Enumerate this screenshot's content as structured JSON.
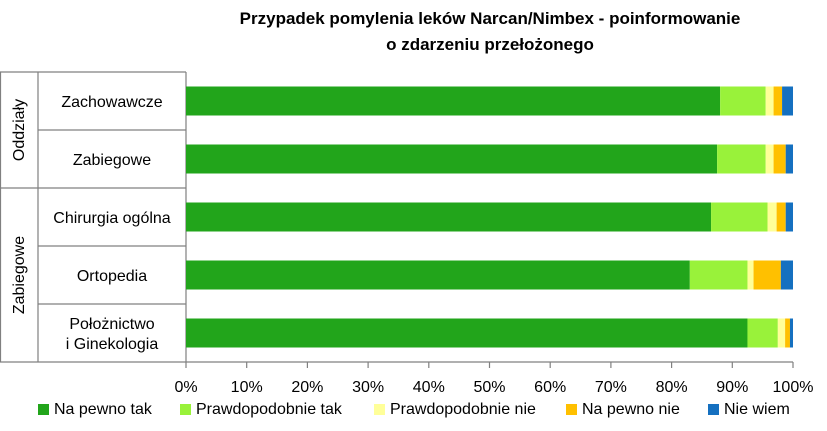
{
  "chart_data": {
    "type": "bar",
    "orientation": "horizontal",
    "stacked": "percent",
    "title_lines": [
      "Przypadek pomylenia leków  Narcan/Nimbex - poinformowanie",
      "o zdarzeniu przełożonego"
    ],
    "groups": [
      {
        "label": "Oddziały",
        "categories": [
          "Zachowawcze",
          "Zabiegowe"
        ]
      },
      {
        "label": "Zabiegowe",
        "categories": [
          "Chirurgia ogólna",
          "Ortopedia",
          "Położnictwo i Ginekologia"
        ]
      }
    ],
    "categories": [
      [
        "Zachowawcze"
      ],
      [
        "Zabiegowe"
      ],
      [
        "Chirurgia ogólna"
      ],
      [
        "Ortopedia"
      ],
      [
        "Położnictwo",
        "i Ginekologia"
      ]
    ],
    "series": [
      {
        "name": "Na pewno tak",
        "color": "#22A51B",
        "values": [
          88.0,
          87.5,
          86.5,
          83.0,
          92.5
        ]
      },
      {
        "name": "Prawdopodobnie tak",
        "color": "#99F23A",
        "values": [
          7.5,
          8.0,
          9.3,
          9.5,
          5.0
        ]
      },
      {
        "name": "Prawdopodobnie nie",
        "color": "#FFFF99",
        "values": [
          1.3,
          1.3,
          1.5,
          1.0,
          1.2
        ]
      },
      {
        "name": "Na pewno nie",
        "color": "#FFC000",
        "values": [
          1.4,
          2.0,
          1.5,
          4.5,
          0.8
        ]
      },
      {
        "name": "Nie wiem",
        "color": "#1570C0",
        "values": [
          1.8,
          1.2,
          1.2,
          2.0,
          0.5
        ]
      }
    ],
    "xlim": [
      0,
      100
    ],
    "x_ticks": [
      "0%",
      "10%",
      "20%",
      "30%",
      "40%",
      "50%",
      "60%",
      "70%",
      "80%",
      "90%",
      "100%"
    ],
    "legend_position": "bottom",
    "grid": false
  }
}
